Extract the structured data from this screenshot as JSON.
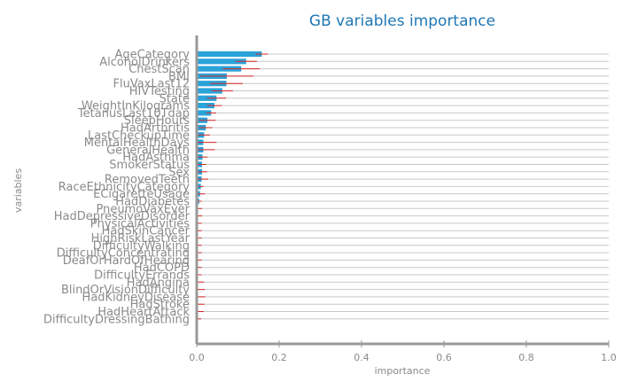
{
  "chart_data": {
    "type": "bar",
    "orientation": "horizontal",
    "title": "GB variables importance",
    "xlabel": "importance",
    "ylabel": "variables",
    "xlim": [
      0,
      1.0
    ],
    "xticks": [
      "0.0",
      "0.2",
      "0.4",
      "0.6",
      "0.8",
      "1.0"
    ],
    "grid": true,
    "colors": {
      "bar": "#2aa3d9",
      "error": "#d62728",
      "title": "#1f77b4",
      "grid": "#c8c8c8",
      "axis": "#999999",
      "text": "#8a8a8a"
    },
    "categories": [
      "AgeCategory",
      "AlcoholDrinkers",
      "ChestScan",
      "BMI",
      "FluVaxLast12",
      "HIVTesting",
      "State",
      "WeightInKilograms",
      "TetanusLast10Tdap",
      "SleepHours",
      "HadArthritis",
      "LastCheckupTime",
      "MentalHealthDays",
      "GeneralHealth",
      "HadAsthma",
      "SmokerStatus",
      "Sex",
      "RemovedTeeth",
      "RaceEthnicityCategory",
      "ECigaretteUsage",
      "HadDiabetes",
      "PneumoVaxEver",
      "HadDepressiveDisorder",
      "PhysicalActivities",
      "HadSkinCancer",
      "HighRiskLastYear",
      "DifficultyWalking",
      "DifficultyConcentrating",
      "DeafOrHardOfHearing",
      "HadCOPD",
      "DifficultyErrands",
      "HadAngina",
      "BlindOrVisionDifficulty",
      "HadKidneyDisease",
      "HadStroke",
      "HadHeartAttack",
      "DifficultyDressingBathing"
    ],
    "values": [
      0.158,
      0.12,
      0.108,
      0.073,
      0.072,
      0.062,
      0.048,
      0.043,
      0.035,
      0.026,
      0.022,
      0.018,
      0.016,
      0.016,
      0.014,
      0.013,
      0.013,
      0.012,
      0.01,
      0.008,
      0.006,
      0.003,
      0.003,
      0.002,
      0.002,
      0.002,
      0.002,
      0.002,
      0.002,
      0.002,
      0.002,
      0.002,
      0.002,
      0.001,
      0.001,
      0.001,
      0.001
    ],
    "errors": [
      0.015,
      0.026,
      0.045,
      0.065,
      0.04,
      0.026,
      0.023,
      0.018,
      0.012,
      0.02,
      0.016,
      0.014,
      0.032,
      0.028,
      0.012,
      0.01,
      0.012,
      0.016,
      0.006,
      0.012,
      0.006,
      0.01,
      0.01,
      0.01,
      0.01,
      0.01,
      0.01,
      0.01,
      0.01,
      0.01,
      0.01,
      0.016,
      0.018,
      0.02,
      0.018,
      0.016,
      0.01
    ]
  }
}
